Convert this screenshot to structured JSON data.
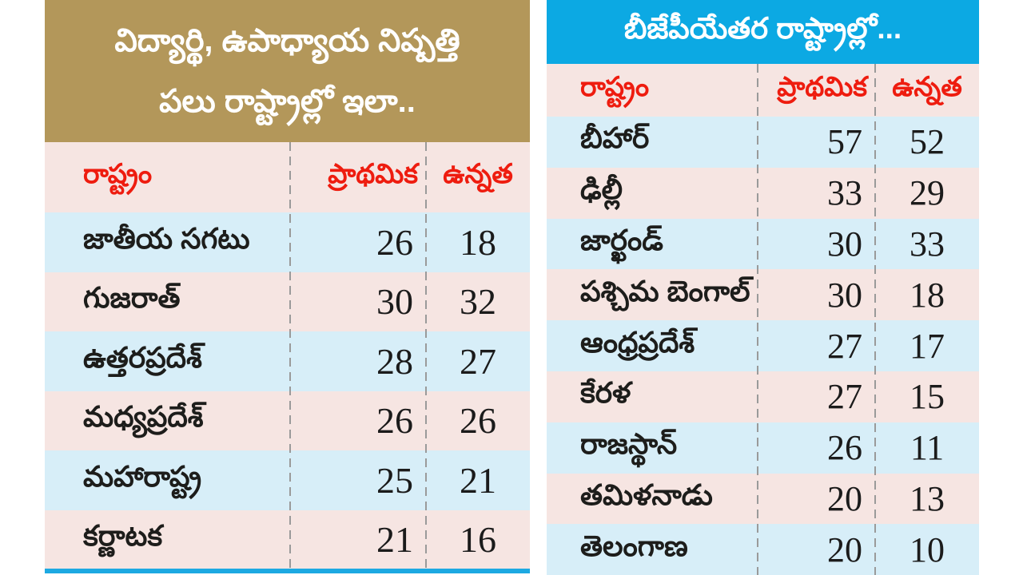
{
  "colors": {
    "gold": "#b3975a",
    "cyan": "#0ca9e3",
    "pink": "#f6e5e2",
    "lightblue": "#d7eef8",
    "red": "#ee1c0f",
    "dash": "#9a9a9a",
    "accentline": "#1da9e2",
    "text": "#1d1d1b"
  },
  "left_table": {
    "title_line1": "విద్యార్థి, ఉపాధ్యాయ నిష్పత్తి",
    "title_line2": "పలు రాష్ట్రాల్లో ఇలా..",
    "columns": {
      "state": "రాష్ట్రం",
      "primary": "ప్రాథమిక",
      "upper": "ఉన్నత"
    },
    "rows": [
      {
        "state": "జాతీయ సగటు",
        "primary": 26,
        "upper": 18
      },
      {
        "state": "గుజరాత్",
        "primary": 30,
        "upper": 32
      },
      {
        "state": "ఉత్తరప్రదేశ్",
        "primary": 28,
        "upper": 27
      },
      {
        "state": "మధ్యప్రదేశ్",
        "primary": 26,
        "upper": 26
      },
      {
        "state": "మహారాష్ట్ర",
        "primary": 25,
        "upper": 21
      },
      {
        "state": "కర్ణాటక",
        "primary": 21,
        "upper": 16
      }
    ]
  },
  "right_table": {
    "title": "బీజేపీయేతర రాష్ట్రాల్లో...",
    "columns": {
      "state": "రాష్ట్రం",
      "primary": "ప్రాథమిక",
      "upper": "ఉన్నత"
    },
    "rows": [
      {
        "state": "బీహార్",
        "primary": 57,
        "upper": 52
      },
      {
        "state": "ఢిల్లీ",
        "primary": 33,
        "upper": 29
      },
      {
        "state": "జార్ఖండ్",
        "primary": 30,
        "upper": 33
      },
      {
        "state": "పశ్చిమ బెంగాల్",
        "primary": 30,
        "upper": 18
      },
      {
        "state": "ఆంధ్రప్రదేశ్",
        "primary": 27,
        "upper": 17
      },
      {
        "state": "కేరళ",
        "primary": 27,
        "upper": 15
      },
      {
        "state": "రాజస్థాన్",
        "primary": 26,
        "upper": 11
      },
      {
        "state": "తమిళనాడు",
        "primary": 20,
        "upper": 13
      },
      {
        "state": "తెలంగాణ",
        "primary": 20,
        "upper": 10
      }
    ]
  },
  "chart_data": [
    {
      "type": "table",
      "title": "విద్యార్థి, ఉపాధ్యాయ నిష్పత్తి పలు రాష్ట్రాల్లో ఇలా..",
      "columns": [
        "రాష్ట్రం",
        "ప్రాథమిక",
        "ఉన్నత"
      ],
      "rows": [
        [
          "జాతీయ సగటు",
          26,
          18
        ],
        [
          "గుజరాత్",
          30,
          32
        ],
        [
          "ఉత్తరప్రదేశ్",
          28,
          27
        ],
        [
          "మధ్యప్రదేశ్",
          26,
          26
        ],
        [
          "మహారాష్ట్ర",
          25,
          21
        ],
        [
          "కర్ణాటక",
          21,
          16
        ]
      ]
    },
    {
      "type": "table",
      "title": "బీజేపీయేతర రాష్ట్రాల్లో...",
      "columns": [
        "రాష్ట్రం",
        "ప్రాథమిక",
        "ఉన్నత"
      ],
      "rows": [
        [
          "బీహార్",
          57,
          52
        ],
        [
          "ఢిల్లీ",
          33,
          29
        ],
        [
          "జార్ఖండ్",
          30,
          33
        ],
        [
          "పశ్చిమ బెంగాల్",
          30,
          18
        ],
        [
          "ఆంధ్రప్రదేశ్",
          27,
          17
        ],
        [
          "కేరళ",
          27,
          15
        ],
        [
          "రాజస్థాన్",
          26,
          11
        ],
        [
          "తమిళనాడు",
          20,
          13
        ],
        [
          "తెలంగాణ",
          20,
          10
        ]
      ]
    }
  ]
}
